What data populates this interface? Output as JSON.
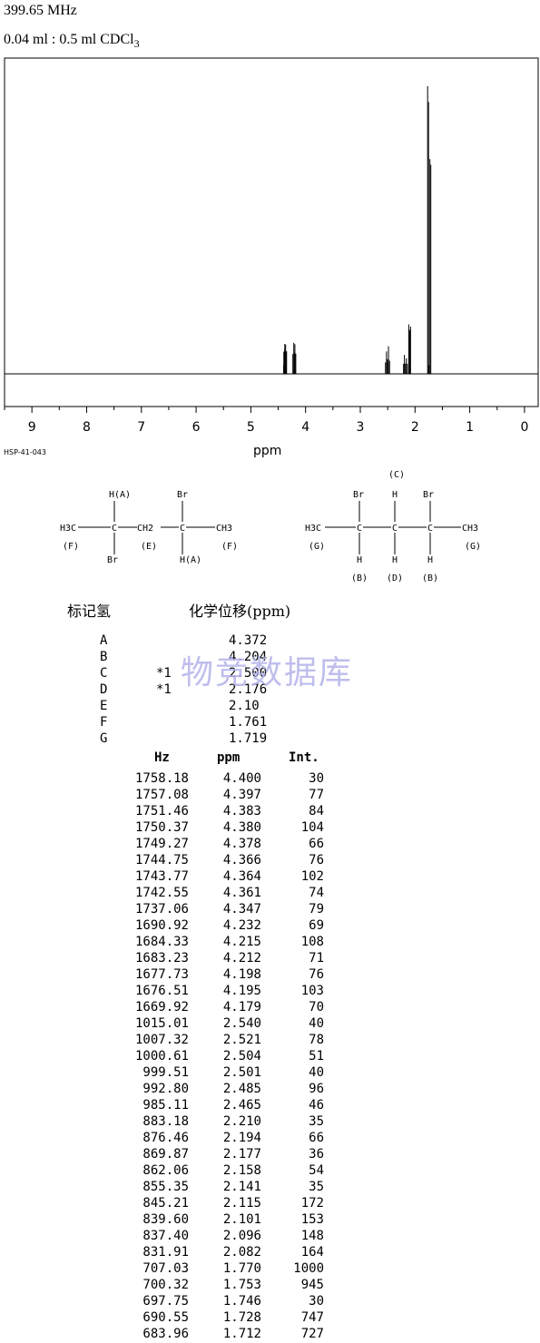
{
  "header": {
    "frequency": "399.65 MHz",
    "sample_prefix": "0.04 ml : 0.5 ml CDCl",
    "sample_subscript": "3"
  },
  "spectrum_code": "HSP-41-043",
  "chart_data": {
    "type": "line",
    "title": "",
    "xlabel": "ppm",
    "ylabel": "",
    "xlim": [
      9.5,
      -0.25
    ],
    "x_reversed": true,
    "x_ticks": [
      9,
      8,
      7,
      6,
      5,
      4,
      3,
      2,
      1,
      0
    ],
    "grid": false,
    "peaks": [
      {
        "ppm": 4.4,
        "int": 30
      },
      {
        "ppm": 4.397,
        "int": 77
      },
      {
        "ppm": 4.383,
        "int": 84
      },
      {
        "ppm": 4.38,
        "int": 104
      },
      {
        "ppm": 4.378,
        "int": 66
      },
      {
        "ppm": 4.366,
        "int": 76
      },
      {
        "ppm": 4.364,
        "int": 102
      },
      {
        "ppm": 4.361,
        "int": 74
      },
      {
        "ppm": 4.347,
        "int": 79
      },
      {
        "ppm": 4.232,
        "int": 69
      },
      {
        "ppm": 4.215,
        "int": 108
      },
      {
        "ppm": 4.212,
        "int": 71
      },
      {
        "ppm": 4.198,
        "int": 76
      },
      {
        "ppm": 4.195,
        "int": 103
      },
      {
        "ppm": 4.179,
        "int": 70
      },
      {
        "ppm": 2.54,
        "int": 40
      },
      {
        "ppm": 2.521,
        "int": 78
      },
      {
        "ppm": 2.504,
        "int": 51
      },
      {
        "ppm": 2.501,
        "int": 40
      },
      {
        "ppm": 2.485,
        "int": 96
      },
      {
        "ppm": 2.465,
        "int": 46
      },
      {
        "ppm": 2.21,
        "int": 35
      },
      {
        "ppm": 2.194,
        "int": 66
      },
      {
        "ppm": 2.177,
        "int": 36
      },
      {
        "ppm": 2.158,
        "int": 54
      },
      {
        "ppm": 2.141,
        "int": 35
      },
      {
        "ppm": 2.115,
        "int": 172
      },
      {
        "ppm": 2.101,
        "int": 153
      },
      {
        "ppm": 2.096,
        "int": 148
      },
      {
        "ppm": 2.082,
        "int": 164
      },
      {
        "ppm": 1.77,
        "int": 1000
      },
      {
        "ppm": 1.753,
        "int": 945
      },
      {
        "ppm": 1.746,
        "int": 30
      },
      {
        "ppm": 1.728,
        "int": 747
      },
      {
        "ppm": 1.712,
        "int": 727
      }
    ]
  },
  "structures": {
    "left": {
      "h_a_top": "H(A)",
      "br_top": "Br",
      "h3c": "H3C",
      "ch2": "CH2",
      "ch3": "CH3",
      "label_f_left": "(F)",
      "label_e": "(E)",
      "label_f_right": "(F)",
      "br_bottom": "Br",
      "h_a_bottom": "H(A)"
    },
    "right": {
      "label_c": "(C)",
      "br_left": "Br",
      "h_mid": "H",
      "br_right": "Br",
      "h3c": "H3C",
      "ch3": "CH3",
      "label_g_left": "(G)",
      "label_g_right": "(G)",
      "h_b_left": "H",
      "h_d": "H",
      "h_b_right": "H",
      "label_b_left": "(B)",
      "label_d": "(D)",
      "label_b_right": "(B)"
    }
  },
  "assignment_header": {
    "label": "标记氢",
    "shift": "化学位移(ppm)"
  },
  "assignments": [
    {
      "label": "A",
      "note": "",
      "shift": "4.372"
    },
    {
      "label": "B",
      "note": "",
      "shift": "4.204"
    },
    {
      "label": "C",
      "note": "*1",
      "shift": "2.500"
    },
    {
      "label": "D",
      "note": "*1",
      "shift": "2.176"
    },
    {
      "label": "E",
      "note": "",
      "shift": "2.10"
    },
    {
      "label": "F",
      "note": "",
      "shift": "1.761"
    },
    {
      "label": "G",
      "note": "",
      "shift": "1.719"
    }
  ],
  "peak_table_header": {
    "hz": "Hz",
    "ppm": "ppm",
    "int": "Int."
  },
  "peak_table": [
    {
      "hz": "1758.18",
      "ppm": "4.400",
      "int": "30"
    },
    {
      "hz": "1757.08",
      "ppm": "4.397",
      "int": "77"
    },
    {
      "hz": "1751.46",
      "ppm": "4.383",
      "int": "84"
    },
    {
      "hz": "1750.37",
      "ppm": "4.380",
      "int": "104"
    },
    {
      "hz": "1749.27",
      "ppm": "4.378",
      "int": "66"
    },
    {
      "hz": "1744.75",
      "ppm": "4.366",
      "int": "76"
    },
    {
      "hz": "1743.77",
      "ppm": "4.364",
      "int": "102"
    },
    {
      "hz": "1742.55",
      "ppm": "4.361",
      "int": "74"
    },
    {
      "hz": "1737.06",
      "ppm": "4.347",
      "int": "79"
    },
    {
      "hz": "1690.92",
      "ppm": "4.232",
      "int": "69"
    },
    {
      "hz": "1684.33",
      "ppm": "4.215",
      "int": "108"
    },
    {
      "hz": "1683.23",
      "ppm": "4.212",
      "int": "71"
    },
    {
      "hz": "1677.73",
      "ppm": "4.198",
      "int": "76"
    },
    {
      "hz": "1676.51",
      "ppm": "4.195",
      "int": "103"
    },
    {
      "hz": "1669.92",
      "ppm": "4.179",
      "int": "70"
    },
    {
      "hz": "1015.01",
      "ppm": "2.540",
      "int": "40"
    },
    {
      "hz": "1007.32",
      "ppm": "2.521",
      "int": "78"
    },
    {
      "hz": "1000.61",
      "ppm": "2.504",
      "int": "51"
    },
    {
      "hz": "999.51",
      "ppm": "2.501",
      "int": "40"
    },
    {
      "hz": "992.80",
      "ppm": "2.485",
      "int": "96"
    },
    {
      "hz": "985.11",
      "ppm": "2.465",
      "int": "46"
    },
    {
      "hz": "883.18",
      "ppm": "2.210",
      "int": "35"
    },
    {
      "hz": "876.46",
      "ppm": "2.194",
      "int": "66"
    },
    {
      "hz": "869.87",
      "ppm": "2.177",
      "int": "36"
    },
    {
      "hz": "862.06",
      "ppm": "2.158",
      "int": "54"
    },
    {
      "hz": "855.35",
      "ppm": "2.141",
      "int": "35"
    },
    {
      "hz": "845.21",
      "ppm": "2.115",
      "int": "172"
    },
    {
      "hz": "839.60",
      "ppm": "2.101",
      "int": "153"
    },
    {
      "hz": "837.40",
      "ppm": "2.096",
      "int": "148"
    },
    {
      "hz": "831.91",
      "ppm": "2.082",
      "int": "164"
    },
    {
      "hz": "707.03",
      "ppm": "1.770",
      "int": "1000"
    },
    {
      "hz": "700.32",
      "ppm": "1.753",
      "int": "945"
    },
    {
      "hz": "697.75",
      "ppm": "1.746",
      "int": "30"
    },
    {
      "hz": "690.55",
      "ppm": "1.728",
      "int": "747"
    },
    {
      "hz": "683.96",
      "ppm": "1.712",
      "int": "727"
    }
  ],
  "watermark": "物竞数据库"
}
